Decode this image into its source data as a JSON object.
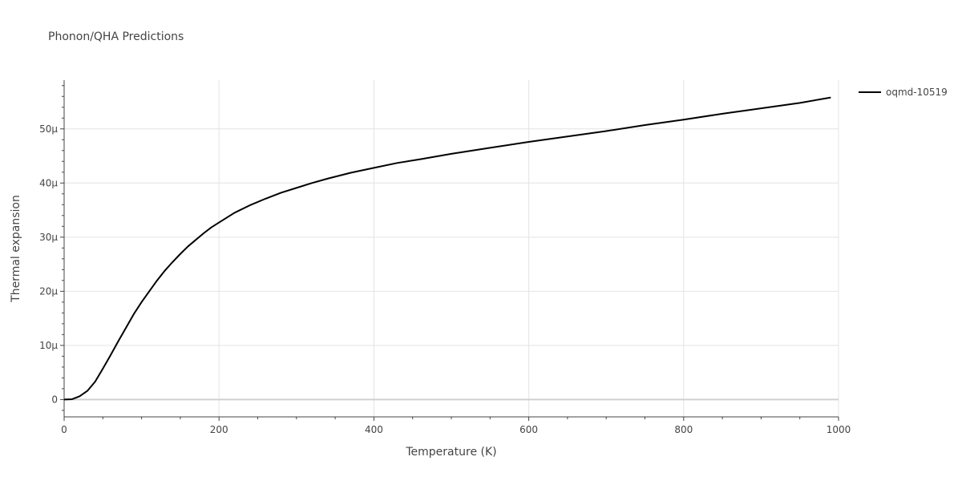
{
  "chart_data": {
    "type": "line",
    "title": "Phonon/QHA Predictions",
    "xlabel": "Temperature (K)",
    "ylabel": "Thermal expansion",
    "xlim": [
      0,
      1000
    ],
    "ylim": [
      -3.2e-06,
      5.9e-05
    ],
    "x_ticks": [
      0,
      200,
      400,
      600,
      800,
      1000
    ],
    "x_tick_labels": [
      "0",
      "200",
      "400",
      "600",
      "800",
      "1000"
    ],
    "y_ticks": [
      0,
      1e-05,
      2e-05,
      3e-05,
      4e-05,
      5e-05
    ],
    "y_tick_labels": [
      "0",
      "10μ",
      "20μ",
      "30μ",
      "40μ",
      "50μ"
    ],
    "grid": true,
    "legend_position": "top-right",
    "series": [
      {
        "name": "oqmd-10519",
        "color": "#000000",
        "x": [
          0,
          10,
          20,
          30,
          40,
          50,
          60,
          70,
          80,
          90,
          100,
          110,
          120,
          130,
          140,
          150,
          160,
          170,
          180,
          190,
          200,
          220,
          240,
          260,
          280,
          300,
          320,
          340,
          370,
          400,
          430,
          460,
          500,
          550,
          600,
          650,
          700,
          750,
          800,
          850,
          890,
          950,
          990
        ],
        "y": [
          0,
          5e-08,
          6e-07,
          1.6e-06,
          3.3e-06,
          5.7e-06,
          8.2e-06,
          1.08e-05,
          1.33e-05,
          1.58e-05,
          1.8e-05,
          2e-05,
          2.2e-05,
          2.38e-05,
          2.54e-05,
          2.69e-05,
          2.83e-05,
          2.95e-05,
          3.07e-05,
          3.18e-05,
          3.27e-05,
          3.45e-05,
          3.59e-05,
          3.71e-05,
          3.82e-05,
          3.91e-05,
          4e-05,
          4.08e-05,
          4.19e-05,
          4.28e-05,
          4.37e-05,
          4.44e-05,
          4.54e-05,
          4.65e-05,
          4.76e-05,
          4.86e-05,
          4.96e-05,
          5.07e-05,
          5.17e-05,
          5.28e-05,
          5.36e-05,
          5.48e-05,
          5.58e-05
        ]
      }
    ]
  }
}
